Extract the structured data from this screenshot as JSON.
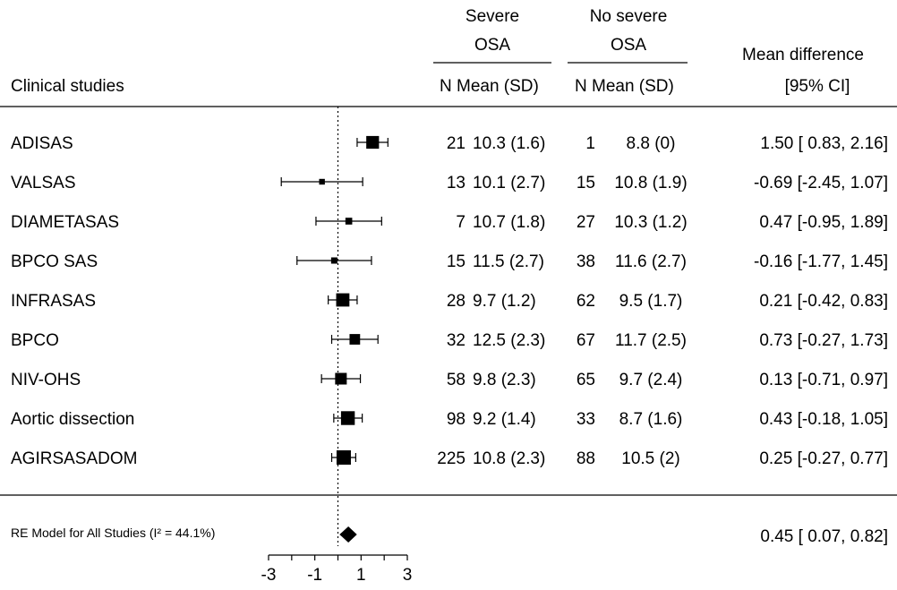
{
  "headers": {
    "study_col": "Clinical studies",
    "group1_line1": "Severe",
    "group1_line2": "OSA",
    "group2_line1": "No severe",
    "group2_line2": "OSA",
    "sub_group1": "N Mean (SD)",
    "sub_group2": "N Mean (SD)",
    "effect_line1": "Mean difference",
    "effect_line2": "[95% CI]"
  },
  "chart_data": {
    "type": "forest",
    "xlim": [
      -3,
      3
    ],
    "xticks": [
      -3,
      -1,
      1,
      3
    ],
    "reference_line": 0,
    "studies": [
      {
        "name": "ADISAS",
        "n1": "21",
        "m1": "10.3 (1.6)",
        "n2": "1",
        "m2": "8.8 (0)",
        "ci_text": "1.50 [ 0.83, 2.16]",
        "est": 1.5,
        "lo": 0.83,
        "hi": 2.16,
        "weight": 0.85
      },
      {
        "name": "VALSAS",
        "n1": "13",
        "m1": "10.1 (2.7)",
        "n2": "15",
        "m2": "10.8 (1.9)",
        "ci_text": "-0.69 [-2.45, 1.07]",
        "est": -0.69,
        "lo": -2.45,
        "hi": 1.07,
        "weight": 0.2
      },
      {
        "name": "DIAMETASAS",
        "n1": "7",
        "m1": "10.7 (1.8)",
        "n2": "27",
        "m2": "10.3 (1.2)",
        "ci_text": "0.47 [-0.95, 1.89]",
        "est": 0.47,
        "lo": -0.95,
        "hi": 1.89,
        "weight": 0.3
      },
      {
        "name": "BPCO SAS",
        "n1": "15",
        "m1": "11.5 (2.7)",
        "n2": "38",
        "m2": "11.6 (2.7)",
        "ci_text": "-0.16 [-1.77, 1.45]",
        "est": -0.16,
        "lo": -1.77,
        "hi": 1.45,
        "weight": 0.25
      },
      {
        "name": "INFRASAS",
        "n1": "28",
        "m1": "9.7 (1.2)",
        "n2": "62",
        "m2": "9.5 (1.7)",
        "ci_text": "0.21 [-0.42, 0.83]",
        "est": 0.21,
        "lo": -0.42,
        "hi": 0.83,
        "weight": 0.9
      },
      {
        "name": "BPCO",
        "n1": "32",
        "m1": "12.5 (2.3)",
        "n2": "67",
        "m2": "11.7 (2.5)",
        "ci_text": "0.73 [-0.27, 1.73]",
        "est": 0.73,
        "lo": -0.27,
        "hi": 1.73,
        "weight": 0.65
      },
      {
        "name": "NIV-OHS",
        "n1": "58",
        "m1": "9.8 (2.3)",
        "n2": "65",
        "m2": "9.7 (2.4)",
        "ci_text": "0.13 [-0.71, 0.97]",
        "est": 0.13,
        "lo": -0.71,
        "hi": 0.97,
        "weight": 0.75
      },
      {
        "name": "Aortic dissection",
        "n1": "98",
        "m1": "9.2 (1.4)",
        "n2": "33",
        "m2": "8.7 (1.6)",
        "ci_text": "0.43 [-0.18, 1.05]",
        "est": 0.43,
        "lo": -0.18,
        "hi": 1.05,
        "weight": 0.95
      },
      {
        "name": "AGIRSASADOM",
        "n1": "225",
        "m1": "10.8 (2.3)",
        "n2": "88",
        "m2": "10.5 (2)",
        "ci_text": "0.25 [-0.27, 0.77]",
        "est": 0.25,
        "lo": -0.27,
        "hi": 0.77,
        "weight": 1.0
      }
    ],
    "summary": {
      "label": "RE Model for All Studies (I² = 44.1%)",
      "ci_text": "0.45 [ 0.07, 0.82]",
      "est": 0.45,
      "lo": 0.07,
      "hi": 0.82
    }
  }
}
